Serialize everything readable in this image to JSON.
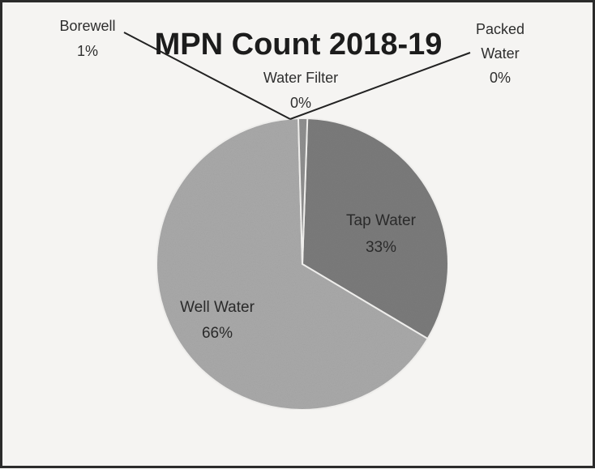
{
  "chart_data": {
    "type": "pie",
    "title": "MPN Count 2018-19",
    "slices": [
      {
        "label": "Tap Water",
        "value": 33,
        "value_label": "33%",
        "color": "#7b7b7b"
      },
      {
        "label": "Well Water",
        "value": 66,
        "value_label": "66%",
        "color": "#a9a9a9"
      },
      {
        "label": "Borewell",
        "value": 1,
        "value_label": "1%",
        "color": "#8f8f8f"
      },
      {
        "label": "Water Filter",
        "value": 0,
        "value_label": "0%",
        "color": "#6e6e6e"
      },
      {
        "label": "Packed Water",
        "value": 0,
        "value_label": "0%",
        "color": "#5a5a5a"
      }
    ],
    "data_labels": "outside-with-leaders-for-small-slices",
    "legend": "none"
  },
  "labels": {
    "borewell_name": "Borewell",
    "borewell_pct": "1%",
    "packed_name_1": "Packed",
    "packed_name_2": "Water",
    "packed_pct": "0%",
    "filter_name": "Water Filter",
    "filter_pct": "0%",
    "tap_name": "Tap Water",
    "tap_pct": "33%",
    "well_name": "Well Water",
    "well_pct": "66%"
  }
}
